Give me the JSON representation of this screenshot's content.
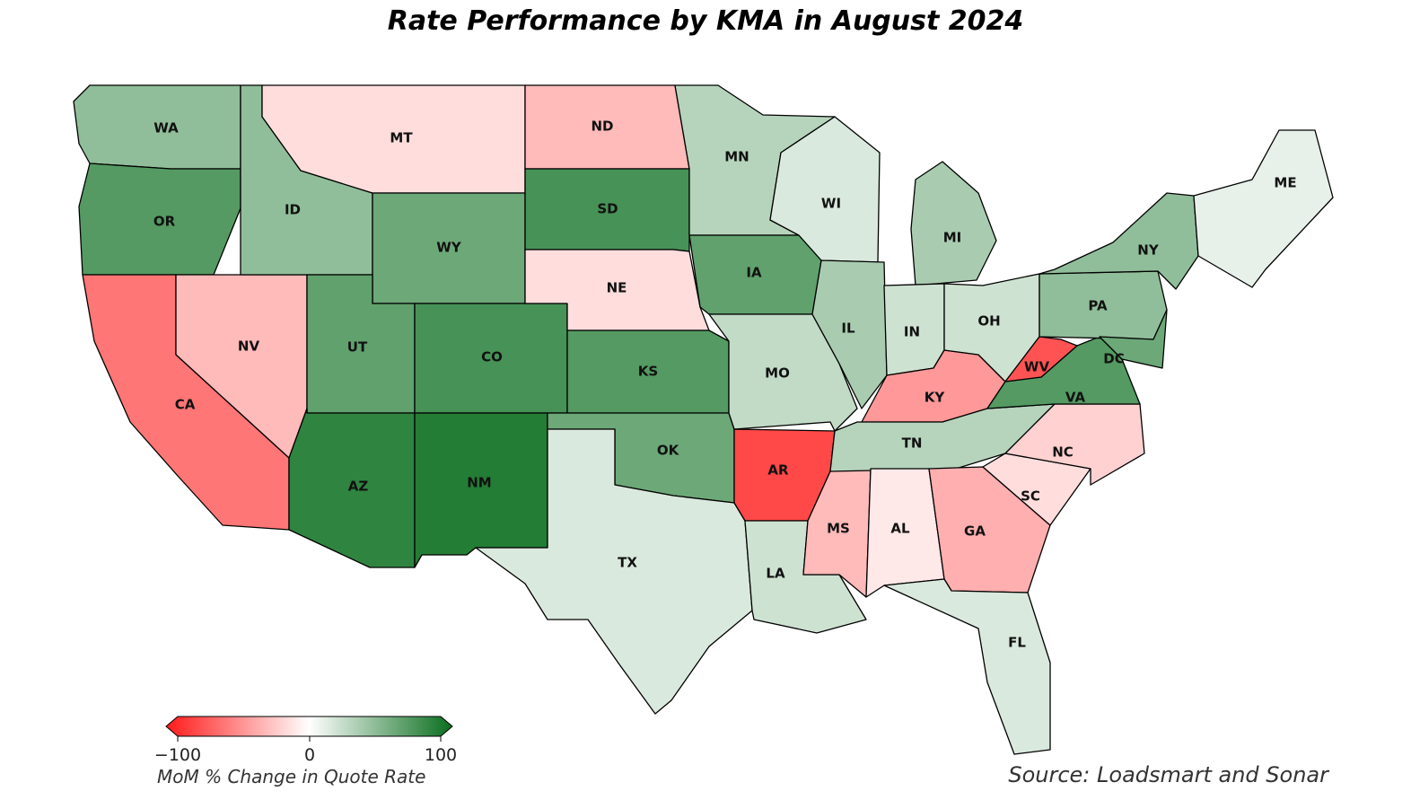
{
  "title": "Rate Performance by KMA in August 2024",
  "source": "Source: Loadsmart and Sonar",
  "legend": {
    "caption": "MoM % Change in Quote Rate",
    "min_label": "−100",
    "mid_label": "0",
    "max_label": "100",
    "min_value": -100,
    "max_value": 100,
    "colors": {
      "negative": "#ff1a1a",
      "neutral": "#ffffff",
      "positive": "#0a6e1e"
    }
  },
  "states": [
    {
      "abbr": "WA",
      "change": 45
    },
    {
      "abbr": "OR",
      "change": 70
    },
    {
      "abbr": "CA",
      "change": -60
    },
    {
      "abbr": "NV",
      "change": -30
    },
    {
      "abbr": "ID",
      "change": 45
    },
    {
      "abbr": "MT",
      "change": -15
    },
    {
      "abbr": "WY",
      "change": 60
    },
    {
      "abbr": "UT",
      "change": 65
    },
    {
      "abbr": "AZ",
      "change": 85
    },
    {
      "abbr": "CO",
      "change": 75
    },
    {
      "abbr": "NM",
      "change": 90
    },
    {
      "abbr": "ND",
      "change": -30
    },
    {
      "abbr": "SD",
      "change": 75
    },
    {
      "abbr": "NE",
      "change": -15
    },
    {
      "abbr": "KS",
      "change": 70
    },
    {
      "abbr": "OK",
      "change": 60
    },
    {
      "abbr": "TX",
      "change": 15
    },
    {
      "abbr": "MN",
      "change": 30
    },
    {
      "abbr": "IA",
      "change": 65
    },
    {
      "abbr": "MO",
      "change": 25
    },
    {
      "abbr": "AR",
      "change": -80
    },
    {
      "abbr": "LA",
      "change": 20
    },
    {
      "abbr": "WI",
      "change": 15
    },
    {
      "abbr": "IL",
      "change": 35
    },
    {
      "abbr": "MS",
      "change": -30
    },
    {
      "abbr": "MI",
      "change": 35
    },
    {
      "abbr": "IN",
      "change": 20
    },
    {
      "abbr": "KY",
      "change": -45
    },
    {
      "abbr": "TN",
      "change": 30
    },
    {
      "abbr": "AL",
      "change": -10
    },
    {
      "abbr": "OH",
      "change": 20
    },
    {
      "abbr": "GA",
      "change": -35
    },
    {
      "abbr": "FL",
      "change": 15
    },
    {
      "abbr": "SC",
      "change": -15
    },
    {
      "abbr": "NC",
      "change": -20
    },
    {
      "abbr": "VA",
      "change": 70
    },
    {
      "abbr": "WV",
      "change": -75
    },
    {
      "abbr": "PA",
      "change": 45
    },
    {
      "abbr": "NY",
      "change": 45
    },
    {
      "abbr": "DC",
      "change": 60
    },
    {
      "abbr": "ME",
      "change": 10
    }
  ]
}
